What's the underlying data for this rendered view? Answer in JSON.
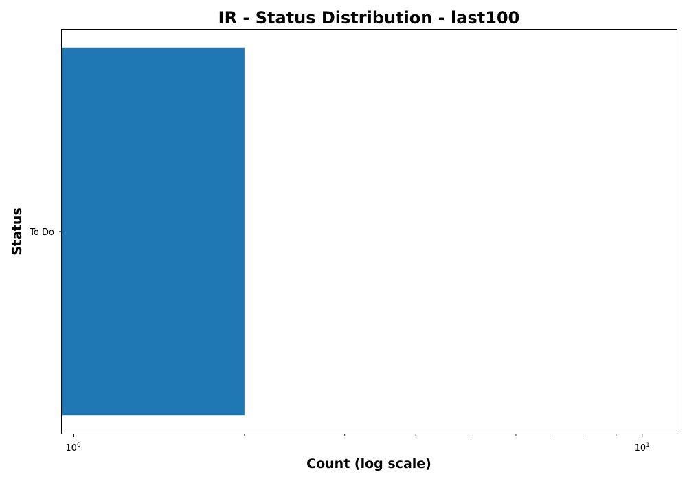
{
  "chart_data": {
    "type": "bar",
    "orientation": "horizontal",
    "title": "IR - Status Distribution - last100",
    "xlabel": "Count (log scale)",
    "ylabel": "Status",
    "x_scale": "log",
    "xlim": [
      0.955,
      11.5
    ],
    "categories": [
      "To Do"
    ],
    "series": [
      {
        "values": [
          2
        ]
      }
    ],
    "x_ticks": [
      {
        "value": 1,
        "base": "10",
        "exp": "0"
      },
      {
        "value": 10,
        "base": "10",
        "exp": "1"
      }
    ],
    "minor_ticks": [
      2,
      3,
      4,
      5,
      6,
      7,
      8,
      9
    ],
    "grid": false,
    "legend": "none",
    "colors": {
      "bar": "#1f77b4",
      "axes": "#000000",
      "background": "#ffffff"
    }
  }
}
